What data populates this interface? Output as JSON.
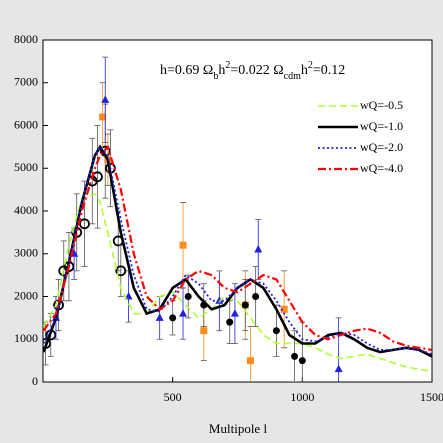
{
  "chart_data": {
    "type": "line",
    "annotation_parts": [
      "h=0.69  Ω",
      "b",
      "h",
      "2",
      "=0.022  Ω",
      "cdm",
      "h",
      "2",
      "=0.12"
    ],
    "x_label": "Multipole l",
    "xlim": [
      0,
      1500
    ],
    "xticks": [
      500,
      1000,
      1500
    ],
    "ylim": [
      0,
      8000
    ],
    "yticks": [
      0,
      1000,
      2000,
      3000,
      4000,
      5000,
      6000,
      7000,
      8000
    ],
    "legend": "upper right",
    "x": [
      2,
      50,
      100,
      150,
      200,
      220,
      250,
      300,
      350,
      400,
      450,
      500,
      550,
      600,
      650,
      700,
      750,
      800,
      850,
      900,
      950,
      1000,
      1050,
      1100,
      1150,
      1200,
      1250,
      1300,
      1350,
      1400,
      1450,
      1500
    ],
    "series": [
      {
        "name": "wQ=-0.5",
        "color": "#adff2f",
        "dash": "dashed",
        "values": [
          1300,
          1800,
          3200,
          4300,
          4400,
          4200,
          3500,
          2200,
          1600,
          1600,
          2000,
          2100,
          1800,
          1500,
          1700,
          2000,
          1900,
          1500,
          1100,
          900,
          900,
          900,
          800,
          650,
          550,
          600,
          650,
          550,
          450,
          350,
          300,
          250
        ]
      },
      {
        "name": "wQ=-1.0",
        "color": "#000000",
        "dash": "solid",
        "values": [
          700,
          1500,
          2800,
          4200,
          5300,
          5500,
          5200,
          3500,
          2200,
          1600,
          1700,
          2200,
          2400,
          2000,
          1700,
          1800,
          2200,
          2400,
          2200,
          1700,
          1100,
          900,
          900,
          1100,
          1150,
          1000,
          800,
          700,
          750,
          800,
          750,
          600
        ]
      },
      {
        "name": "wQ=-2.0",
        "color": "#2020e0",
        "dash": "dotted",
        "values": [
          900,
          1500,
          2800,
          4200,
          5300,
          5500,
          5300,
          3800,
          2500,
          1700,
          1650,
          2000,
          2500,
          2300,
          1900,
          1900,
          2200,
          2400,
          2300,
          1900,
          1400,
          1000,
          950,
          1050,
          1150,
          1100,
          900,
          750,
          750,
          800,
          750,
          650
        ]
      },
      {
        "name": "wQ=-4.0",
        "color": "#ff0000",
        "dash": "dashdot",
        "values": [
          1200,
          1600,
          2700,
          4000,
          5000,
          5300,
          5500,
          4500,
          3000,
          2000,
          1700,
          1900,
          2400,
          2600,
          2500,
          2200,
          2100,
          2300,
          2500,
          2400,
          1900,
          1400,
          1100,
          1000,
          1100,
          1200,
          1250,
          1150,
          950,
          850,
          800,
          750
        ]
      }
    ],
    "points": [
      {
        "marker": "circle-open",
        "color": "#000000",
        "x": [
          10,
          30,
          60,
          80,
          100,
          130,
          160,
          190,
          210,
          240,
          260,
          290,
          300
        ],
        "values": [
          900,
          1100,
          1800,
          2600,
          2700,
          3500,
          3700,
          4700,
          4800,
          5400,
          5000,
          3300,
          2600
        ],
        "errors": [
          500,
          500,
          600,
          700,
          800,
          900,
          1000,
          1000,
          1200,
          1100,
          900,
          700,
          600
        ]
      },
      {
        "marker": "square",
        "color": "#ff8c1a",
        "x": [
          230,
          250,
          540,
          620,
          780,
          800,
          930
        ],
        "values": [
          6200,
          5200,
          3200,
          1200,
          1800,
          500,
          1700
        ],
        "errors": [
          800,
          600,
          1000,
          700,
          800,
          800,
          900
        ]
      },
      {
        "marker": "triangle",
        "color": "#2020e0",
        "x": [
          50,
          120,
          240,
          330,
          450,
          540,
          680,
          740,
          830,
          1140
        ],
        "values": [
          1500,
          3000,
          6600,
          2000,
          1500,
          1600,
          1900,
          1600,
          3100,
          300
        ],
        "errors": [
          500,
          600,
          1000,
          600,
          500,
          600,
          700,
          700,
          700,
          1200
        ]
      },
      {
        "marker": "circle",
        "color": "#000000",
        "x": [
          500,
          560,
          620,
          720,
          780,
          820,
          900,
          970,
          1000
        ],
        "values": [
          1500,
          2000,
          1800,
          1400,
          1800,
          2000,
          1200,
          600,
          500
        ],
        "errors": [
          400,
          500,
          500,
          500,
          600,
          700,
          600,
          600,
          900
        ]
      }
    ]
  }
}
